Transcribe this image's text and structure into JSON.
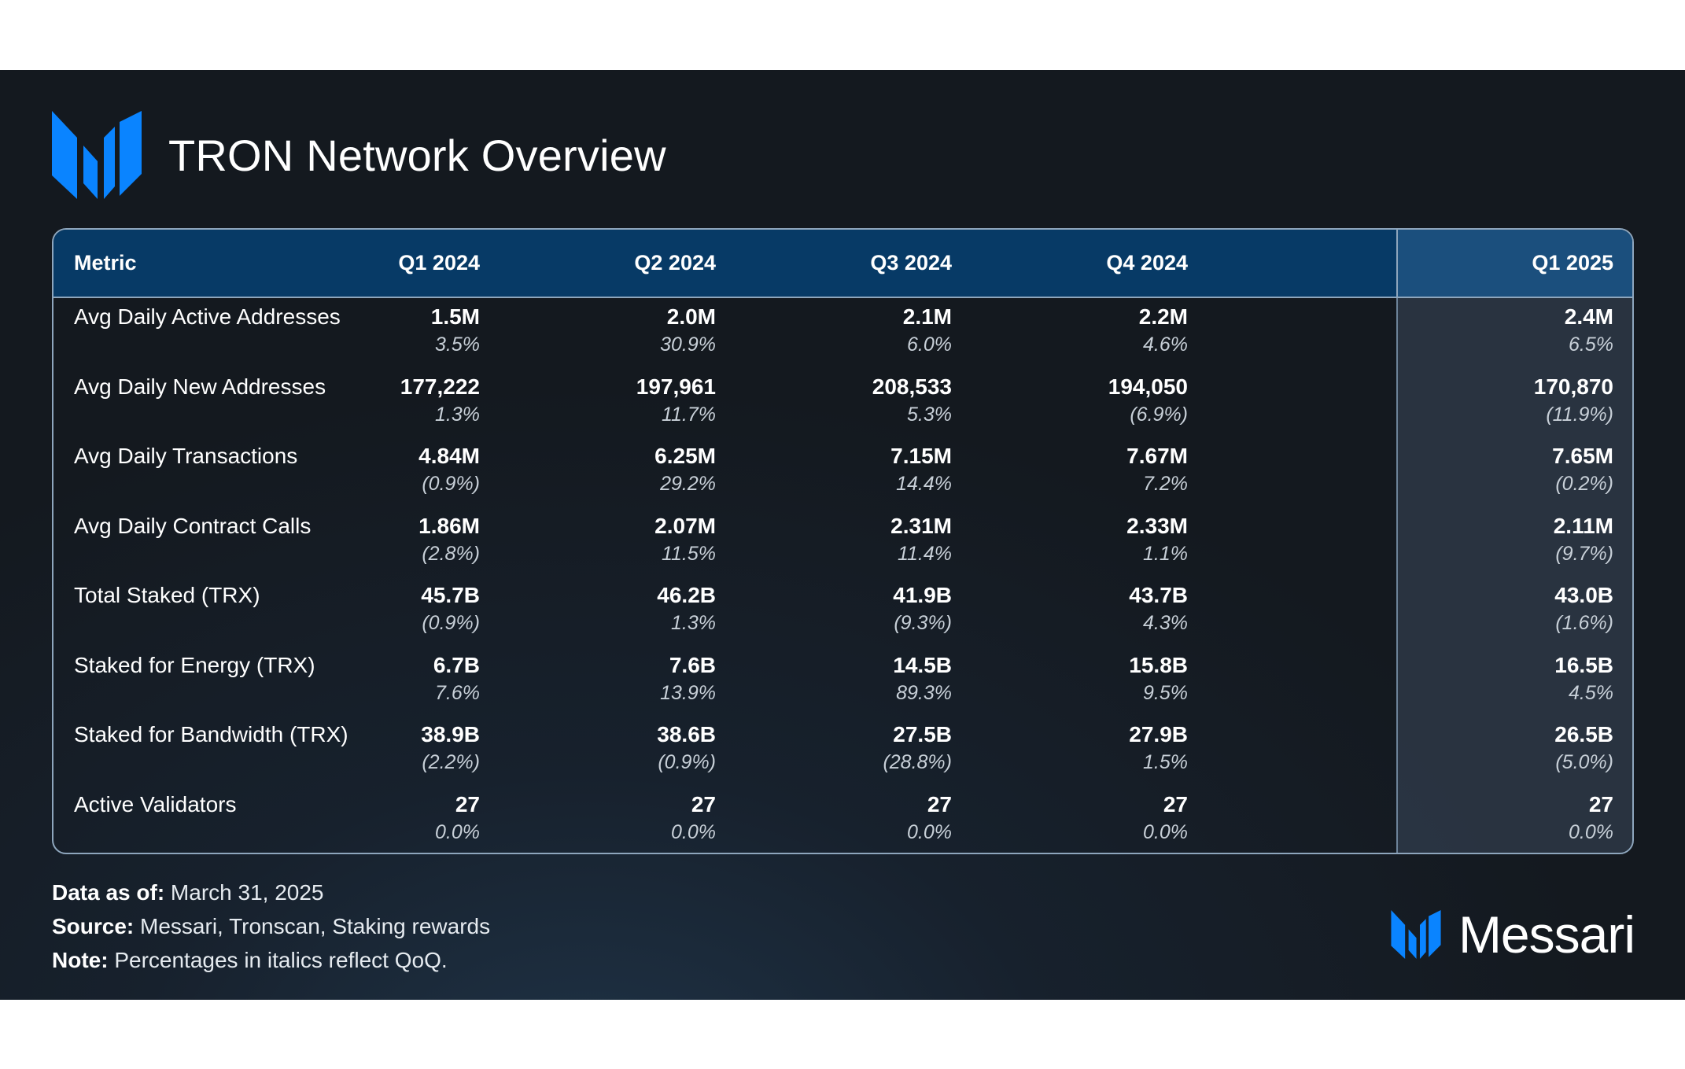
{
  "header": {
    "title": "TRON Network Overview",
    "logo_icon": "messari-m-logo-icon",
    "accent_color": "#0a84ff"
  },
  "table": {
    "columns": [
      "Metric",
      "Q1 2024",
      "Q2 2024",
      "Q3 2024",
      "Q4 2024",
      "Q1 2025"
    ],
    "rows": [
      {
        "metric": "Avg Daily Active Addresses",
        "values": [
          "1.5M",
          "2.0M",
          "2.1M",
          "2.2M",
          "2.4M"
        ],
        "changes": [
          "3.5%",
          "30.9%",
          "6.0%",
          "4.6%",
          "6.5%"
        ]
      },
      {
        "metric": "Avg Daily New Addresses",
        "values": [
          "177,222",
          "197,961",
          "208,533",
          "194,050",
          "170,870"
        ],
        "changes": [
          "1.3%",
          "11.7%",
          "5.3%",
          "(6.9%)",
          "(11.9%)"
        ]
      },
      {
        "metric": "Avg Daily Transactions",
        "values": [
          "4.84M",
          "6.25M",
          "7.15M",
          "7.67M",
          "7.65M"
        ],
        "changes": [
          "(0.9%)",
          "29.2%",
          "14.4%",
          "7.2%",
          "(0.2%)"
        ]
      },
      {
        "metric": "Avg Daily Contract Calls",
        "values": [
          "1.86M",
          "2.07M",
          "2.31M",
          "2.33M",
          "2.11M"
        ],
        "changes": [
          "(2.8%)",
          "11.5%",
          "11.4%",
          "1.1%",
          "(9.7%)"
        ]
      },
      {
        "metric": "Total Staked (TRX)",
        "values": [
          "45.7B",
          "46.2B",
          "41.9B",
          "43.7B",
          "43.0B"
        ],
        "changes": [
          "(0.9%)",
          "1.3%",
          "(9.3%)",
          "4.3%",
          "(1.6%)"
        ]
      },
      {
        "metric": "Staked for Energy (TRX)",
        "values": [
          "6.7B",
          "7.6B",
          "14.5B",
          "15.8B",
          "16.5B"
        ],
        "changes": [
          "7.6%",
          "13.9%",
          "89.3%",
          "9.5%",
          "4.5%"
        ]
      },
      {
        "metric": "Staked for Bandwidth (TRX)",
        "values": [
          "38.9B",
          "38.6B",
          "27.5B",
          "27.9B",
          "26.5B"
        ],
        "changes": [
          "(2.2%)",
          "(0.9%)",
          "(28.8%)",
          "1.5%",
          "(5.0%)"
        ]
      },
      {
        "metric": "Active Validators",
        "values": [
          "27",
          "27",
          "27",
          "27",
          "27"
        ],
        "changes": [
          "0.0%",
          "0.0%",
          "0.0%",
          "0.0%",
          "0.0%"
        ]
      }
    ]
  },
  "footer": {
    "data_as_of_label": "Data as of:",
    "data_as_of_value": " March 31, 2025",
    "source_label": "Source:",
    "source_value": " Messari, Tronscan, Staking rewards",
    "note_label": "Note:",
    "note_value": " Percentages in italics reflect QoQ."
  },
  "brand": {
    "name": "Messari",
    "logo_icon": "messari-m-logo-icon"
  }
}
